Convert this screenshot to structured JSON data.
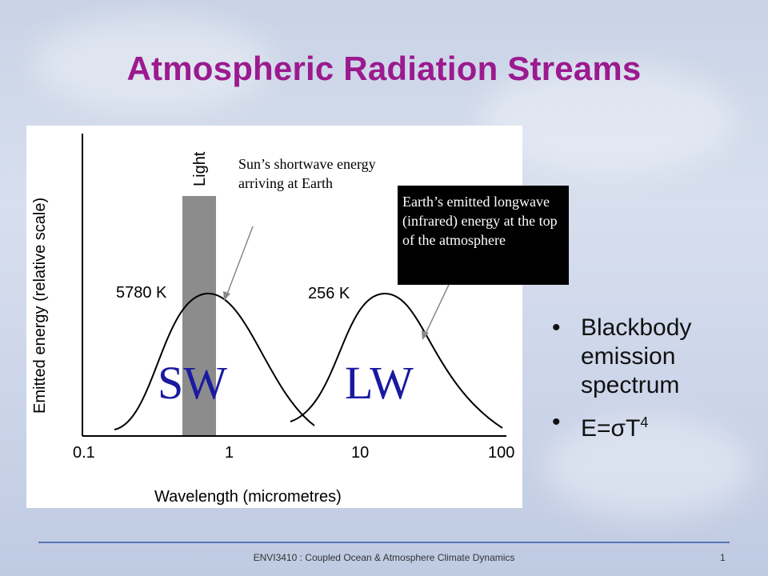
{
  "slide": {
    "title": "Atmospheric Radiation Streams",
    "footer": "ENVI3410 : Coupled Ocean & Atmosphere Climate Dynamics",
    "page_number": "1"
  },
  "figure": {
    "y_axis_label": "Emitted energy (relative scale)",
    "x_axis_label": "Wavelength (micrometres)",
    "x_ticks": [
      "0.1",
      "1",
      "10",
      "100"
    ],
    "light_band_label": "Light",
    "sw_label": "SW",
    "lw_label": "LW",
    "sun_temp_label": "5780 K",
    "earth_temp_label": "256 K",
    "sun_annotation": "Sun’s shortwave energy arriving at Earth",
    "earth_annotation": "Earth’s emitted longwave (infrared) energy at the top of the atmosphere",
    "colors": {
      "sw_lw_text": "#1a1aa0",
      "light_band": "#8c8c8c",
      "title": "#9b1a8f"
    }
  },
  "bullets": {
    "item1": "Blackbody emission spectrum",
    "eq_prefix": "E=",
    "eq_sigma": "σ",
    "eq_T": "T",
    "eq_exp": "4"
  }
}
